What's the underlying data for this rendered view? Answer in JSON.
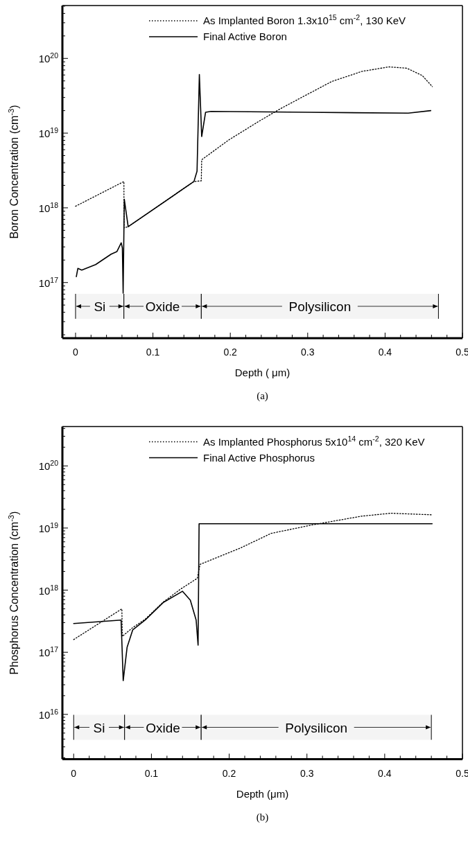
{
  "chart_data": [
    {
      "type": "line",
      "ylabel": "Boron Concentration (cm$^{-3}$)",
      "xlabel": "Depth ( μm)",
      "log": "y",
      "legend": "top right",
      "grid": false,
      "xlim": [
        -0.017,
        0.5
      ],
      "ylim": [
        1.8e+16,
        5.1e+20
      ],
      "xticks": [
        0,
        {
          "value": 0.02,
          "label": null
        },
        {
          "value": 0.04,
          "label": null
        },
        {
          "value": 0.06,
          "label": null
        },
        {
          "value": 0.08,
          "label": null
        },
        0.1,
        {
          "value": 0.12,
          "label": null
        },
        {
          "value": 0.14,
          "label": null
        },
        {
          "value": 0.16,
          "label": null
        },
        {
          "value": 0.18,
          "label": null
        },
        0.2,
        {
          "value": 0.22,
          "label": null
        },
        {
          "value": 0.24,
          "label": null
        },
        {
          "value": 0.26,
          "label": null
        },
        {
          "value": 0.28,
          "label": null
        },
        0.3,
        {
          "value": 0.32,
          "label": null
        },
        {
          "value": 0.34,
          "label": null
        },
        {
          "value": 0.36,
          "label": null
        },
        {
          "value": 0.38,
          "label": null
        },
        0.4,
        {
          "value": 0.42,
          "label": null
        },
        {
          "value": 0.44,
          "label": null
        },
        {
          "value": 0.46,
          "label": null
        },
        {
          "value": 0.48,
          "label": null
        },
        0.5
      ],
      "yticks": [
        {
          "value": 2e+16,
          "label": null
        },
        {
          "value": 3e+16,
          "label": null
        },
        {
          "value": 4e+16,
          "label": null
        },
        {
          "value": 5e+16,
          "label": null
        },
        {
          "value": 6e+16,
          "label": null
        },
        {
          "value": 7e+16,
          "label": null
        },
        {
          "value": 8e+16,
          "label": null
        },
        {
          "value": 9e+16,
          "label": null
        },
        {
          "value": 1e+17,
          "label": "10$^{17}$"
        },
        {
          "value": 2e+17,
          "label": null
        },
        {
          "value": 3e+17,
          "label": null
        },
        {
          "value": 4e+17,
          "label": null
        },
        {
          "value": 5e+17,
          "label": null
        },
        {
          "value": 6e+17,
          "label": null
        },
        {
          "value": 7e+17,
          "label": null
        },
        {
          "value": 8e+17,
          "label": null
        },
        {
          "value": 9e+17,
          "label": null
        },
        {
          "value": 1e+18,
          "label": "10$^{18}$"
        },
        {
          "value": 2e+18,
          "label": null
        },
        {
          "value": 3e+18,
          "label": null
        },
        {
          "value": 4e+18,
          "label": null
        },
        {
          "value": 5e+18,
          "label": null
        },
        {
          "value": 6e+18,
          "label": null
        },
        {
          "value": 7e+18,
          "label": null
        },
        {
          "value": 8e+18,
          "label": null
        },
        {
          "value": 9e+18,
          "label": null
        },
        {
          "value": 1e+19,
          "label": "10$^{19}$"
        },
        {
          "value": 2e+19,
          "label": null
        },
        {
          "value": 3e+19,
          "label": null
        },
        {
          "value": 4e+19,
          "label": null
        },
        {
          "value": 5e+19,
          "label": null
        },
        {
          "value": 6e+19,
          "label": null
        },
        {
          "value": 7e+19,
          "label": null
        },
        {
          "value": 8e+19,
          "label": null
        },
        {
          "value": 9e+19,
          "label": null
        },
        {
          "value": 1e+20,
          "label": "10$^{20}$"
        },
        {
          "value": 2e+20,
          "label": null
        },
        {
          "value": 3e+20,
          "label": null
        },
        {
          "value": 4e+20,
          "label": null
        },
        {
          "value": 5e+20,
          "label": null
        }
      ],
      "series": [
        {
          "name": "As Implanted Boron 1.3x10$^{15}$  cm$^{-2}$, 130 KeV",
          "color": "#000000",
          "line_style": "dotted",
          "x": [
            0,
            0.0625,
            0.0627,
            0.068,
            0.153,
            0.1625,
            0.163,
            0.198,
            0.237,
            0.264,
            0.292,
            0.331,
            0.37,
            0.405,
            0.428,
            0.448,
            0.461
          ],
          "values": [
            1.05e+18,
            2.25e+18,
            5.4e+17,
            5.6e+17,
            2.25e+18,
            2.3e+18,
            4.4e+18,
            8.1e+18,
            1.44e+19,
            2.1e+19,
            3e+19,
            4.9e+19,
            6.7e+19,
            7.7e+19,
            7.4e+19,
            5.9e+19,
            4.2e+19
          ]
        },
        {
          "name": "Final Active Boron",
          "color": "#000000",
          "line_style": "solid",
          "x": [
            0.001,
            0.003,
            0.008,
            0.026,
            0.046,
            0.0535,
            0.059,
            0.0605,
            0.0615,
            0.063,
            0.068,
            0.153,
            0.157,
            0.16,
            0.163,
            0.168,
            0.175,
            0.3,
            0.43,
            0.459
          ],
          "values": [
            1.2e+17,
            1.55e+17,
            1.47e+17,
            1.74e+17,
            2.4e+17,
            2.6e+17,
            3.4e+17,
            2.9e+17,
            7.2e+16,
            1.3e+18,
            5.6e+17,
            2.25e+18,
            3.1e+18,
            6.1e+19,
            9e+18,
            1.9e+19,
            1.95e+19,
            1.9e+19,
            1.85e+19,
            2e+19
          ]
        }
      ],
      "bands": [
        {
          "axis": "x",
          "from": 0,
          "to": 0.0625,
          "label": "Si"
        },
        {
          "axis": "x",
          "from": 0.0625,
          "to": 0.1625,
          "label": "Oxide"
        },
        {
          "axis": "x",
          "from": 0.1625,
          "to": 0.469,
          "label": "Polysilicon"
        }
      ],
      "annotations": [
        "(a)"
      ]
    },
    {
      "type": "line",
      "ylabel": "Phosphorus Concentration (cm$^{-3}$)",
      "xlabel": "Depth (μm)",
      "log": "y",
      "legend": "top right",
      "grid": false,
      "xlim": [
        -0.0145,
        0.5
      ],
      "ylim": [
        1900000000000000.0,
        4.3e+20
      ],
      "xticks": [
        0,
        {
          "value": 0.02,
          "label": null
        },
        {
          "value": 0.04,
          "label": null
        },
        {
          "value": 0.06,
          "label": null
        },
        {
          "value": 0.08,
          "label": null
        },
        0.1,
        {
          "value": 0.12,
          "label": null
        },
        {
          "value": 0.14,
          "label": null
        },
        {
          "value": 0.16,
          "label": null
        },
        {
          "value": 0.18,
          "label": null
        },
        0.2,
        {
          "value": 0.22,
          "label": null
        },
        {
          "value": 0.24,
          "label": null
        },
        {
          "value": 0.26,
          "label": null
        },
        {
          "value": 0.28,
          "label": null
        },
        0.3,
        {
          "value": 0.32,
          "label": null
        },
        {
          "value": 0.34,
          "label": null
        },
        {
          "value": 0.36,
          "label": null
        },
        {
          "value": 0.38,
          "label": null
        },
        0.4,
        {
          "value": 0.42,
          "label": null
        },
        {
          "value": 0.44,
          "label": null
        },
        {
          "value": 0.46,
          "label": null
        },
        {
          "value": 0.48,
          "label": null
        },
        0.5
      ],
      "yticks": [
        {
          "value": 2000000000000000.0,
          "label": null
        },
        {
          "value": 3000000000000000.0,
          "label": null
        },
        {
          "value": 4000000000000000.0,
          "label": null
        },
        {
          "value": 5000000000000000.0,
          "label": null
        },
        {
          "value": 6000000000000000.0,
          "label": null
        },
        {
          "value": 7000000000000000.0,
          "label": null
        },
        {
          "value": 8000000000000000.0,
          "label": null
        },
        {
          "value": 9000000000000000.0,
          "label": null
        },
        {
          "value": 1e+16,
          "label": "10$^{16}$"
        },
        {
          "value": 2e+16,
          "label": null
        },
        {
          "value": 3e+16,
          "label": null
        },
        {
          "value": 4e+16,
          "label": null
        },
        {
          "value": 5e+16,
          "label": null
        },
        {
          "value": 6e+16,
          "label": null
        },
        {
          "value": 7e+16,
          "label": null
        },
        {
          "value": 8e+16,
          "label": null
        },
        {
          "value": 9e+16,
          "label": null
        },
        {
          "value": 1e+17,
          "label": "10$^{17}$"
        },
        {
          "value": 2e+17,
          "label": null
        },
        {
          "value": 3e+17,
          "label": null
        },
        {
          "value": 4e+17,
          "label": null
        },
        {
          "value": 5e+17,
          "label": null
        },
        {
          "value": 6e+17,
          "label": null
        },
        {
          "value": 7e+17,
          "label": null
        },
        {
          "value": 8e+17,
          "label": null
        },
        {
          "value": 9e+17,
          "label": null
        },
        {
          "value": 1e+18,
          "label": "10$^{18}$"
        },
        {
          "value": 2e+18,
          "label": null
        },
        {
          "value": 3e+18,
          "label": null
        },
        {
          "value": 4e+18,
          "label": null
        },
        {
          "value": 5e+18,
          "label": null
        },
        {
          "value": 6e+18,
          "label": null
        },
        {
          "value": 7e+18,
          "label": null
        },
        {
          "value": 8e+18,
          "label": null
        },
        {
          "value": 9e+18,
          "label": null
        },
        {
          "value": 1e+19,
          "label": "10$^{19}$"
        },
        {
          "value": 2e+19,
          "label": null
        },
        {
          "value": 3e+19,
          "label": null
        },
        {
          "value": 4e+19,
          "label": null
        },
        {
          "value": 5e+19,
          "label": null
        },
        {
          "value": 6e+19,
          "label": null
        },
        {
          "value": 7e+19,
          "label": null
        },
        {
          "value": 8e+19,
          "label": null
        },
        {
          "value": 9e+19,
          "label": null
        },
        {
          "value": 1e+20,
          "label": "10$^{20}$"
        },
        {
          "value": 2e+20,
          "label": null
        },
        {
          "value": 3e+20,
          "label": null
        },
        {
          "value": 4e+20,
          "label": null
        }
      ],
      "series": [
        {
          "name": "As Implanted Phosphorus 5x10$^{14}$ cm$^{-2}$, 320 KeV",
          "color": "#000000",
          "line_style": "dotted",
          "x": [
            0,
            0.062,
            0.0625,
            0.076,
            0.092,
            0.115,
            0.138,
            0.159,
            0.1625,
            0.215,
            0.254,
            0.308,
            0.37,
            0.408,
            0.462
          ],
          "values": [
            1.6e+17,
            5e+17,
            1.8e+17,
            2.5e+17,
            3.4e+17,
            6.4e+17,
            1.05e+18,
            1.55e+18,
            2.6e+18,
            4.8e+18,
            8.2e+18,
            1.13e+19,
            1.55e+19,
            1.73e+19,
            1.63e+19
          ]
        },
        {
          "name": "Final Active Phosphorus",
          "color": "#000000",
          "line_style": "solid",
          "x": [
            0,
            0.061,
            0.0637,
            0.0687,
            0.076,
            0.092,
            0.115,
            0.14,
            0.15,
            0.1575,
            0.16,
            0.1613,
            0.461
          ],
          "values": [
            2.9e+17,
            3.3e+17,
            3.5e+16,
            1.2e+17,
            2.3e+17,
            3.3e+17,
            6.3e+17,
            9.6e+17,
            6.9e+17,
            3.3e+17,
            1.3e+17,
            1.17e+19,
            1.17e+19
          ]
        }
      ],
      "bands": [
        {
          "axis": "x",
          "from": 0,
          "to": 0.0655,
          "label": "Si"
        },
        {
          "axis": "x",
          "from": 0.0655,
          "to": 0.164,
          "label": "Oxide"
        },
        {
          "axis": "x",
          "from": 0.164,
          "to": 0.46,
          "label": "Polysilicon"
        }
      ],
      "annotations": [
        "(b)"
      ]
    }
  ]
}
